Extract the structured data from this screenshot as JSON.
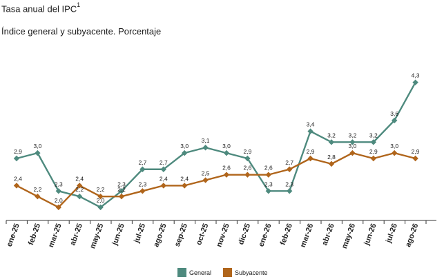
{
  "header": {
    "title": "Tasa anual del IPC",
    "title_sup": "1",
    "subtitle": "Índice general y subyacente. Porcentaje"
  },
  "chart_data": {
    "type": "line",
    "categories": [
      "ene-25",
      "feb-25",
      "mar-25",
      "abr-25",
      "may-25",
      "jun-25",
      "jul-25",
      "ago-25",
      "sep-25",
      "oct-25",
      "nov-25",
      "dic-25",
      "ene-26",
      "feb-26",
      "mar-26",
      "abr-26",
      "may-26",
      "jun-26",
      "jul-26",
      "ago-26"
    ],
    "series": [
      {
        "name": "General",
        "color": "#4e8a7e",
        "values": [
          2.9,
          3.0,
          2.3,
          2.2,
          2.0,
          2.3,
          2.7,
          2.7,
          3.0,
          3.1,
          3.0,
          2.9,
          2.3,
          2.3,
          3.4,
          3.2,
          3.2,
          3.2,
          3.6,
          4.3
        ],
        "labels": [
          "2,9",
          "3,0",
          "2,3",
          "2,2",
          "2,0",
          "2,3",
          "2,7",
          "2,7",
          "3,0",
          "3,1",
          "3,0",
          "2,9",
          "2,3",
          "2,3",
          "3,4",
          "3,2",
          "3,2",
          "3,2",
          "3,6",
          "4,3"
        ]
      },
      {
        "name": "Subyacente",
        "color": "#b0651b",
        "values": [
          2.4,
          2.2,
          2.0,
          2.4,
          2.2,
          2.2,
          2.3,
          2.4,
          2.4,
          2.5,
          2.6,
          2.6,
          2.6,
          2.7,
          2.9,
          2.8,
          3.0,
          2.9,
          3.0,
          2.9
        ],
        "labels": [
          "2,4",
          "2,2",
          "2,0",
          "2,4",
          "2,2",
          "2,2",
          "2,3",
          "2,4",
          "2,4",
          "2,5",
          "2,6",
          "2,6",
          "2,6",
          "2,7",
          "2,9",
          "2,8",
          "3,0",
          "2,9",
          "3,0",
          "2,9"
        ]
      }
    ],
    "xlabel": "",
    "ylabel": "",
    "ylim": [
      1.8,
      4.6
    ],
    "grid": false,
    "legend": "bottom-center"
  }
}
